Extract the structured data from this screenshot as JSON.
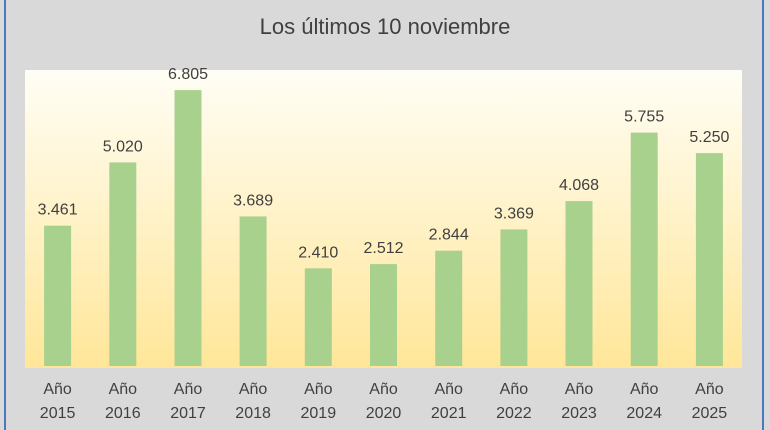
{
  "chart_data": {
    "type": "bar",
    "title": "Los últimos 10 noviembre",
    "categories": [
      [
        "Año",
        "2015"
      ],
      [
        "Año",
        "2016"
      ],
      [
        "Año",
        "2017"
      ],
      [
        "Año",
        "2018"
      ],
      [
        "Año",
        "2019"
      ],
      [
        "Año",
        "2020"
      ],
      [
        "Año",
        "2021"
      ],
      [
        "Año",
        "2022"
      ],
      [
        "Año",
        "2023"
      ],
      [
        "Año",
        "2024"
      ],
      [
        "Año",
        "2025"
      ]
    ],
    "values": [
      3461,
      5020,
      6805,
      3689,
      2410,
      2512,
      2844,
      3369,
      4068,
      5755,
      5250
    ],
    "data_labels": [
      "3.461",
      "5.020",
      "6.805",
      "3.689",
      "2.410",
      "2.512",
      "2.844",
      "3.369",
      "4.068",
      "5.755",
      "5.250"
    ],
    "ylim": [
      0,
      7300
    ],
    "xlabel": "",
    "ylabel": "",
    "grid": false,
    "legend": "none",
    "colors": {
      "bar": "#a9d18e",
      "plot_top": "#fffef5",
      "plot_bottom": "#ffe699",
      "text": "#404040",
      "background": "#d9d9d9",
      "border": "#4a78c2"
    }
  }
}
